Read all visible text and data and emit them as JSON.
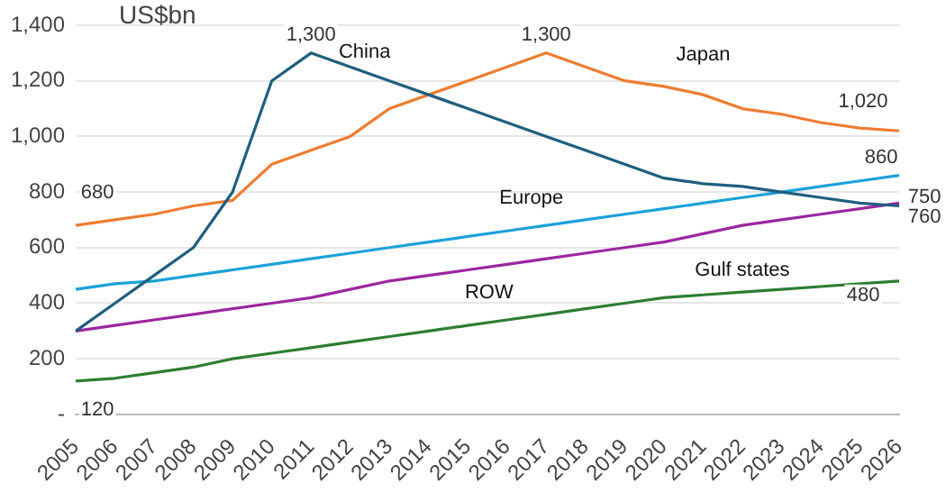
{
  "chart_data": {
    "type": "line",
    "ylabel": "US$bn",
    "categories": [
      "2005",
      "2006",
      "2007",
      "2008",
      "2009",
      "2010",
      "2011",
      "2012",
      "2013",
      "2014",
      "2015",
      "2016",
      "2017",
      "2018",
      "2019",
      "2020",
      "2021",
      "2022",
      "2023",
      "2024",
      "2025",
      "2026"
    ],
    "series": [
      {
        "name": "China",
        "color": "#1f5f7f",
        "values": [
          300,
          400,
          500,
          600,
          800,
          1200,
          1300,
          1250,
          1200,
          1150,
          1100,
          1050,
          1000,
          950,
          900,
          850,
          830,
          820,
          800,
          780,
          760,
          750
        ],
        "value_labels": [
          null,
          null,
          null,
          null,
          null,
          null,
          "1,300",
          null,
          null,
          null,
          null,
          null,
          null,
          null,
          null,
          null,
          null,
          null,
          null,
          null,
          null,
          "750"
        ]
      },
      {
        "name": "Japan",
        "color": "#ed7d31",
        "values": [
          680,
          700,
          720,
          750,
          770,
          900,
          950,
          1000,
          1100,
          1150,
          1200,
          1250,
          1300,
          1250,
          1200,
          1180,
          1150,
          1100,
          1080,
          1050,
          1030,
          1020
        ],
        "value_labels": [
          "680",
          null,
          null,
          null,
          null,
          null,
          null,
          null,
          null,
          null,
          null,
          null,
          "1,300",
          null,
          null,
          null,
          null,
          null,
          null,
          null,
          null,
          "1,020"
        ]
      },
      {
        "name": "Europe",
        "color": "#1ba1d9",
        "values": [
          450,
          470,
          480,
          500,
          520,
          540,
          560,
          580,
          600,
          620,
          640,
          660,
          680,
          700,
          720,
          740,
          760,
          780,
          800,
          820,
          840,
          860
        ],
        "value_labels": [
          null,
          null,
          null,
          null,
          null,
          null,
          null,
          null,
          null,
          null,
          null,
          null,
          null,
          null,
          null,
          null,
          null,
          null,
          null,
          null,
          null,
          "860"
        ]
      },
      {
        "name": "ROW",
        "color": "#9c27a0",
        "values": [
          300,
          320,
          340,
          360,
          380,
          400,
          420,
          450,
          480,
          500,
          520,
          540,
          560,
          580,
          600,
          620,
          650,
          680,
          700,
          720,
          740,
          760
        ],
        "value_labels": [
          null,
          null,
          null,
          null,
          null,
          null,
          null,
          null,
          null,
          null,
          null,
          null,
          null,
          null,
          null,
          null,
          null,
          null,
          null,
          null,
          null,
          "760"
        ]
      },
      {
        "name": "Gulf states",
        "color": "#2e7d32",
        "values": [
          120,
          130,
          150,
          170,
          200,
          220,
          240,
          260,
          280,
          300,
          320,
          340,
          360,
          380,
          400,
          420,
          430,
          440,
          450,
          460,
          470,
          480
        ],
        "value_labels": [
          "120",
          null,
          null,
          null,
          null,
          null,
          null,
          null,
          null,
          null,
          null,
          null,
          null,
          null,
          null,
          null,
          null,
          null,
          null,
          null,
          null,
          "480"
        ]
      }
    ],
    "ylim": [
      0,
      1400
    ],
    "yticks": [
      {
        "value": 0,
        "label": "-"
      },
      200,
      400,
      600,
      800,
      {
        "value": 1000,
        "label": "1,000"
      },
      {
        "value": 1200,
        "label": "1,200"
      },
      {
        "value": 1400,
        "label": "1,400"
      }
    ],
    "grid": "y",
    "legend": false,
    "marker": "none",
    "line_style": "solid"
  }
}
